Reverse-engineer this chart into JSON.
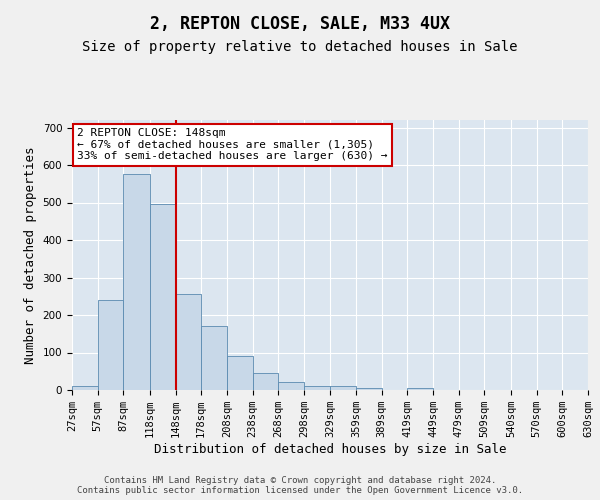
{
  "title": "2, REPTON CLOSE, SALE, M33 4UX",
  "subtitle": "Size of property relative to detached houses in Sale",
  "xlabel": "Distribution of detached houses by size in Sale",
  "ylabel": "Number of detached properties",
  "bar_color": "#c8d8e8",
  "bar_edge_color": "#5a8ab0",
  "vline_color": "#cc0000",
  "vline_x": 148,
  "annotation_line1": "2 REPTON CLOSE: 148sqm",
  "annotation_line2": "← 67% of detached houses are smaller (1,305)",
  "annotation_line3": "33% of semi-detached houses are larger (630) →",
  "annotation_box_color": "#cc0000",
  "footer_line1": "Contains HM Land Registry data © Crown copyright and database right 2024.",
  "footer_line2": "Contains public sector information licensed under the Open Government Licence v3.0.",
  "bin_edges": [
    27,
    57,
    87,
    118,
    148,
    178,
    208,
    238,
    268,
    298,
    329,
    359,
    389,
    419,
    449,
    479,
    509,
    540,
    570,
    600,
    630
  ],
  "bar_heights": [
    10,
    240,
    575,
    495,
    255,
    170,
    90,
    45,
    22,
    12,
    10,
    5,
    0,
    5,
    0,
    0,
    0,
    0,
    0,
    0
  ],
  "ylim": [
    0,
    720
  ],
  "yticks": [
    0,
    100,
    200,
    300,
    400,
    500,
    600,
    700
  ],
  "plot_bg_color": "#dce6f0",
  "grid_color": "#ffffff",
  "fig_bg_color": "#f0f0f0",
  "title_fontsize": 12,
  "subtitle_fontsize": 10,
  "tick_fontsize": 7.5,
  "label_fontsize": 9,
  "annotation_fontsize": 8,
  "footer_fontsize": 6.5
}
